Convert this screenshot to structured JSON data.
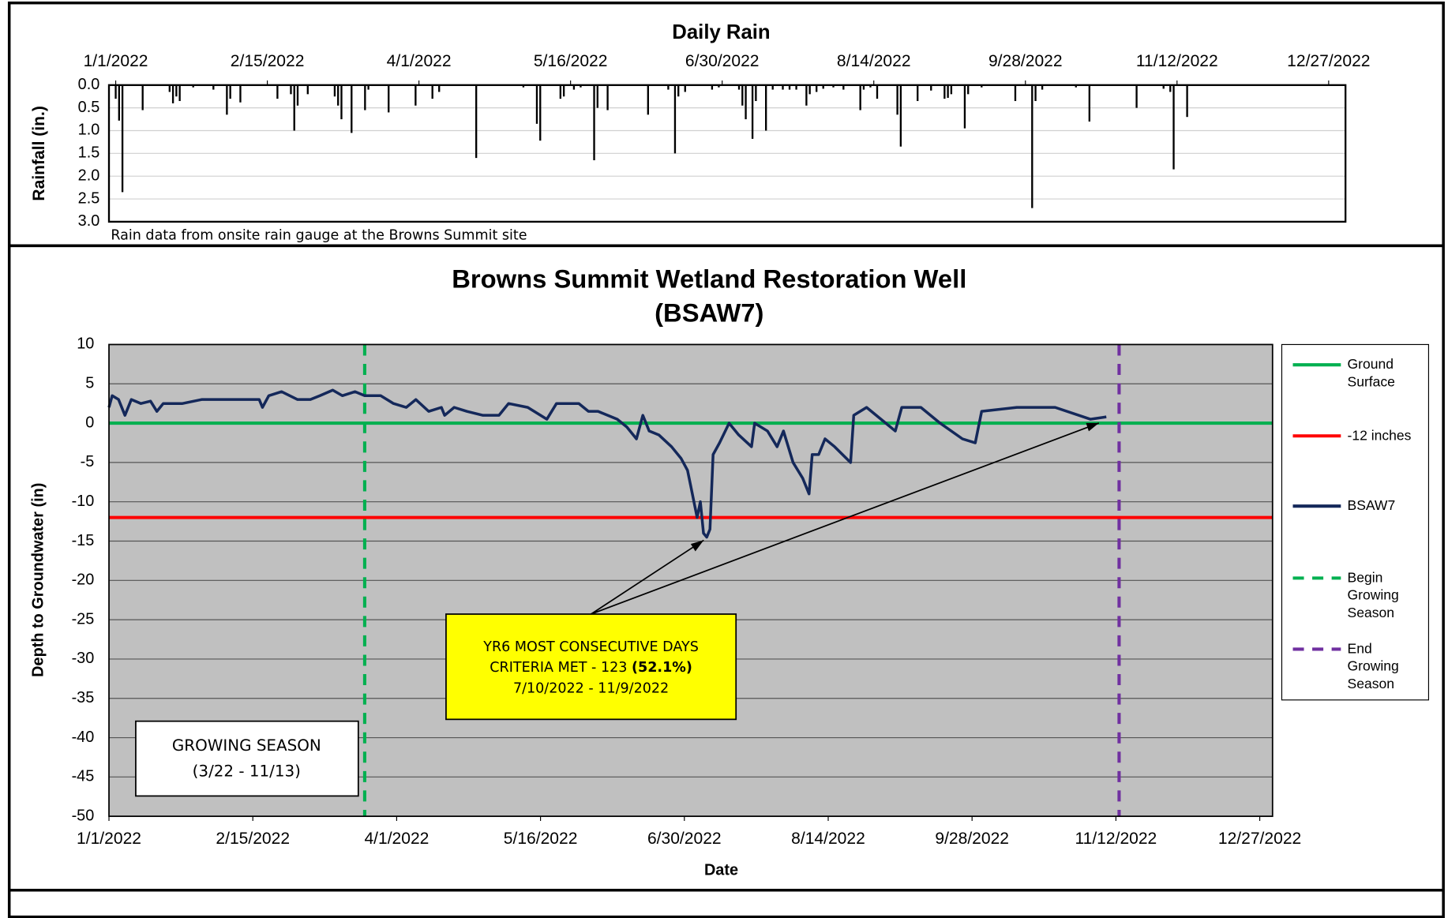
{
  "chart_data": [
    {
      "type": "bar",
      "title": "Daily Rain",
      "ylabel": "Rainfall (in.)",
      "note": "Rain data from onsite rain gauge at the Browns Summit site",
      "color": "#000000",
      "x": [
        "1/1/2022",
        "1/2/2022",
        "1/3/2022",
        "1/9/2022",
        "1/17/2022",
        "1/18/2022",
        "1/19/2022",
        "1/20/2022",
        "1/24/2022",
        "1/30/2022",
        "2/3/2022",
        "2/4/2022",
        "2/7/2022",
        "2/18/2022",
        "2/22/2022",
        "2/23/2022",
        "2/24/2022",
        "2/27/2022",
        "3/7/2022",
        "3/8/2022",
        "3/9/2022",
        "3/12/2022",
        "3/16/2022",
        "3/17/2022",
        "3/23/2022",
        "3/31/2022",
        "4/5/2022",
        "4/7/2022",
        "4/18/2022",
        "5/2/2022",
        "5/6/2022",
        "5/7/2022",
        "5/13/2022",
        "5/14/2022",
        "5/17/2022",
        "5/19/2022",
        "5/23/2022",
        "5/24/2022",
        "5/27/2022",
        "6/8/2022",
        "6/14/2022",
        "6/16/2022",
        "6/17/2022",
        "6/19/2022",
        "6/27/2022",
        "6/29/2022",
        "7/5/2022",
        "7/6/2022",
        "7/7/2022",
        "7/9/2022",
        "7/10/2022",
        "7/13/2022",
        "7/15/2022",
        "7/18/2022",
        "7/20/2022",
        "7/22/2022",
        "7/25/2022",
        "7/26/2022",
        "7/28/2022",
        "7/30/2022",
        "8/2/2022",
        "8/5/2022",
        "8/10/2022",
        "8/11/2022",
        "8/13/2022",
        "8/15/2022",
        "8/21/2022",
        "8/22/2022",
        "8/27/2022",
        "8/31/2022",
        "9/4/2022",
        "9/5/2022",
        "9/6/2022",
        "9/10/2022",
        "9/11/2022",
        "9/15/2022",
        "9/25/2022",
        "9/30/2022",
        "10/1/2022",
        "10/3/2022",
        "10/13/2022",
        "10/17/2022",
        "10/31/2022",
        "11/8/2022",
        "11/10/2022",
        "11/11/2022",
        "11/15/2022"
      ],
      "values": [
        0.3,
        0.78,
        2.35,
        0.55,
        0.15,
        0.4,
        0.25,
        0.35,
        0.05,
        0.1,
        0.65,
        0.3,
        0.38,
        0.3,
        0.2,
        1.0,
        0.45,
        0.2,
        0.25,
        0.45,
        0.75,
        1.05,
        0.55,
        0.1,
        0.6,
        0.45,
        0.3,
        0.15,
        1.6,
        0.05,
        0.85,
        1.22,
        0.3,
        0.25,
        0.1,
        0.05,
        1.65,
        0.5,
        0.55,
        0.65,
        0.1,
        1.5,
        0.25,
        0.15,
        0.1,
        0.05,
        0.1,
        0.45,
        0.75,
        1.18,
        0.35,
        1.0,
        0.1,
        0.1,
        0.1,
        0.1,
        0.45,
        0.2,
        0.15,
        0.08,
        0.05,
        0.1,
        0.55,
        0.1,
        0.05,
        0.3,
        0.65,
        1.35,
        0.35,
        0.12,
        0.3,
        0.28,
        0.2,
        0.95,
        0.2,
        0.05,
        0.35,
        2.7,
        0.35,
        0.1,
        0.05,
        0.8,
        0.5,
        0.08,
        0.15,
        1.85,
        0.7
      ],
      "xlim": [
        "12/30/2021",
        "1/1/2023"
      ],
      "xticks": [
        "1/1/2022",
        "2/15/2022",
        "4/1/2022",
        "5/16/2022",
        "6/30/2022",
        "8/14/2022",
        "9/28/2022",
        "11/12/2022",
        "12/27/2022"
      ],
      "ylim": [
        0,
        3
      ],
      "yreverse": true,
      "yticks": [
        {
          "value": 0,
          "label": "0.0"
        },
        0.5,
        {
          "value": 1,
          "label": "1.0"
        },
        1.5,
        {
          "value": 2,
          "label": "2.0"
        },
        2.5,
        {
          "value": 3,
          "label": "3.0"
        }
      ],
      "grid": true
    },
    {
      "type": "line",
      "title": "Browns Summit Wetland Restoration Well",
      "subtitle": "(BSAW7)",
      "xlabel": "Date",
      "ylabel": "Depth to Groundwater (in)",
      "background": "#c0c0c0",
      "xlim": [
        "1/1/2022",
        "12/31/2022"
      ],
      "xticks": [
        "1/1/2022",
        "2/15/2022",
        "4/1/2022",
        "5/16/2022",
        "6/30/2022",
        "8/14/2022",
        "9/28/2022",
        "11/12/2022",
        "12/27/2022"
      ],
      "ylim": [
        -50,
        10
      ],
      "yticks": [
        10,
        5,
        0,
        -5,
        -10,
        -15,
        -20,
        -25,
        -30,
        -35,
        -40,
        -45,
        -50
      ],
      "grid": true,
      "hlines": [
        {
          "name": "Ground Surface",
          "color": "#00b050",
          "value": 0
        },
        {
          "name": "-12 inches",
          "color": "#ff0000",
          "value": -12
        }
      ],
      "series": [
        {
          "name": "BSAW7",
          "color": "#14285a",
          "x": [
            "1/1/2022",
            "1/2/2022",
            "1/4/2022",
            "1/6/2022",
            "1/8/2022",
            "1/11/2022",
            "1/14/2022",
            "1/16/2022",
            "1/18/2022",
            "1/24/2022",
            "1/30/2022",
            "2/5/2022",
            "2/11/2022",
            "2/17/2022",
            "2/18/2022",
            "2/20/2022",
            "2/24/2022",
            "3/1/2022",
            "3/5/2022",
            "3/8/2022",
            "3/12/2022",
            "3/15/2022",
            "3/19/2022",
            "3/22/2022",
            "3/27/2022",
            "3/31/2022",
            "4/4/2022",
            "4/7/2022",
            "4/11/2022",
            "4/15/2022",
            "4/16/2022",
            "4/19/2022",
            "4/23/2022",
            "4/28/2022",
            "5/3/2022",
            "5/6/2022",
            "5/12/2022",
            "5/16/2022",
            "5/18/2022",
            "5/21/2022",
            "5/25/2022",
            "5/28/2022",
            "5/31/2022",
            "6/3/2022",
            "6/6/2022",
            "6/9/2022",
            "6/12/2022",
            "6/15/2022",
            "6/17/2022",
            "6/19/2022",
            "6/22/2022",
            "6/26/2022",
            "6/29/2022",
            "7/1/2022",
            "7/2/2022",
            "7/4/2022",
            "7/5/2022",
            "7/6/2022",
            "7/7/2022",
            "7/8/2022",
            "7/9/2022",
            "7/11/2022",
            "7/14/2022",
            "7/17/2022",
            "7/21/2022",
            "7/22/2022",
            "7/26/2022",
            "7/29/2022",
            "7/31/2022",
            "8/3/2022",
            "8/6/2022",
            "8/8/2022",
            "8/9/2022",
            "8/11/2022",
            "8/13/2022",
            "8/16/2022",
            "8/21/2022",
            "8/22/2022",
            "8/26/2022",
            "9/1/2022",
            "9/4/2022",
            "9/6/2022",
            "9/12/2022",
            "9/18/2022",
            "9/25/2022",
            "9/29/2022",
            "10/1/2022",
            "10/12/2022",
            "10/24/2022",
            "11/4/2022",
            "11/9/2022"
          ],
          "values": [
            2,
            3.5,
            3,
            1,
            3,
            2.5,
            2.8,
            1.5,
            2.5,
            2.5,
            3,
            3,
            3,
            3,
            2,
            3.5,
            4,
            3,
            3,
            3.5,
            4.2,
            3.5,
            4,
            3.5,
            3.5,
            2.5,
            2,
            3,
            1.5,
            2,
            1,
            2,
            1.5,
            1,
            1,
            2.5,
            2,
            1,
            0.5,
            2.5,
            2.5,
            2.5,
            1.5,
            1.5,
            1,
            0.5,
            -0.5,
            -2,
            1,
            -1,
            -1.5,
            -3,
            -4.5,
            -6,
            -8,
            -12,
            -10,
            -14,
            -14.5,
            -13.5,
            -4,
            -2.5,
            0,
            -1.5,
            -3,
            0,
            -1,
            -3,
            -1,
            -5,
            -7,
            -9,
            -4,
            -4,
            -2,
            -3,
            -5,
            1,
            2,
            0,
            -1,
            2,
            2,
            0,
            -2,
            -2.5,
            1.5,
            2,
            2,
            0.5,
            0.8
          ]
        }
      ],
      "vlines": [
        {
          "name": "Begin Growing Season",
          "color": "#00b050",
          "x": "3/22/2022"
        },
        {
          "name": "End Growing Season",
          "color": "#7030a0",
          "x": "11/13/2022"
        }
      ],
      "annotation": {
        "line1": "YR6 MOST CONSECUTIVE DAYS",
        "line2": "CRITERIA MET - 123",
        "line2_bold": "(52.1%)",
        "line3": "7/10/2022 - 11/9/2022",
        "color": "#ffff00"
      },
      "season_box": {
        "line1": "GROWING SEASON",
        "line2": "(3/22 - 11/13)"
      }
    }
  ]
}
